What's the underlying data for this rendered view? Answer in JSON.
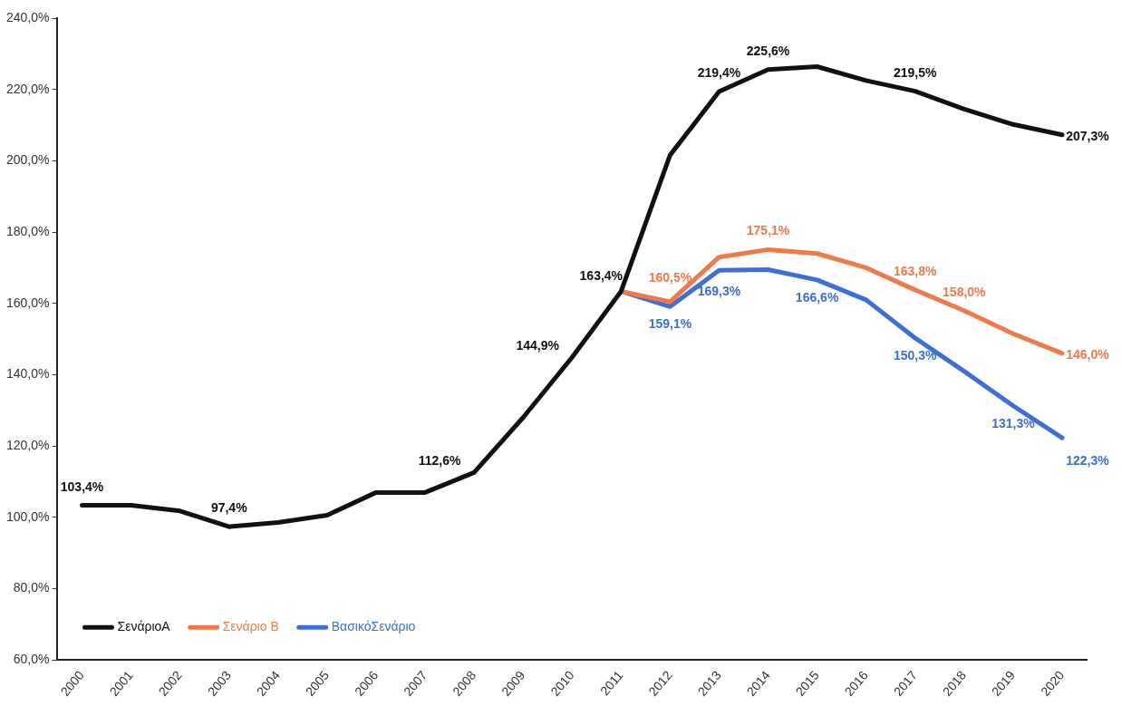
{
  "chart_data": {
    "type": "line",
    "categories": [
      "2000",
      "2001",
      "2002",
      "2003",
      "2004",
      "2005",
      "2006",
      "2007",
      "2008",
      "2009",
      "2010",
      "2011",
      "2012",
      "2013",
      "2014",
      "2015",
      "2016",
      "2017",
      "2018",
      "2019",
      "2020"
    ],
    "series": [
      {
        "name": "ΣενάριοA",
        "color": "#111111",
        "values": [
          103.4,
          103.4,
          101.8,
          97.4,
          98.6,
          100.6,
          107,
          107,
          112.6,
          128,
          144.9,
          163.4,
          201.6,
          219.4,
          225.6,
          226.4,
          222.5,
          219.5,
          214.5,
          210.2,
          207.3
        ],
        "value_labels": [
          "103,4%",
          null,
          null,
          "97,4%",
          null,
          null,
          null,
          null,
          "112,6%",
          null,
          "144,9%",
          "163,4%",
          null,
          "219,4%",
          "225,6%",
          null,
          null,
          "219,5%",
          null,
          null,
          "207,3%"
        ]
      },
      {
        "name": "Σενάριο B",
        "color": "#ee7a4c",
        "values": [
          null,
          null,
          null,
          null,
          null,
          null,
          null,
          null,
          null,
          null,
          null,
          163.4,
          160.5,
          173,
          175.1,
          174,
          170,
          163.8,
          158.0,
          151.5,
          146.0
        ],
        "value_labels": [
          null,
          null,
          null,
          null,
          null,
          null,
          null,
          null,
          null,
          null,
          null,
          null,
          "160,5%",
          null,
          "175,1%",
          null,
          null,
          "163,8%",
          "158,0%",
          null,
          "146,0%"
        ]
      },
      {
        "name": "ΒασικόΣενάριο",
        "color": "#3d6fd6",
        "values": [
          null,
          null,
          null,
          null,
          null,
          null,
          null,
          null,
          null,
          null,
          null,
          163.4,
          159.1,
          169.3,
          169.5,
          166.6,
          161,
          150.3,
          141,
          131.3,
          122.3
        ],
        "value_labels": [
          null,
          null,
          null,
          null,
          null,
          null,
          null,
          null,
          null,
          null,
          null,
          null,
          "159,1%",
          "169,3%",
          null,
          "166,6%",
          null,
          "150,3%",
          null,
          "131,3%",
          "122,3%"
        ]
      }
    ],
    "ylim": [
      60,
      240
    ],
    "yticks": [
      {
        "value": 60,
        "label": "60,0%"
      },
      {
        "value": 80,
        "label": "80,0%"
      },
      {
        "value": 100,
        "label": "100,0%"
      },
      {
        "value": 120,
        "label": "120,0%"
      },
      {
        "value": 140,
        "label": "140,0%"
      },
      {
        "value": 160,
        "label": "160,0%"
      },
      {
        "value": 180,
        "label": "180,0%"
      },
      {
        "value": 200,
        "label": "200,0%"
      },
      {
        "value": 220,
        "label": "220,0%"
      },
      {
        "value": 240,
        "label": "240,0%"
      }
    ],
    "grid": false,
    "legend": "bottom left",
    "marker": "none",
    "line_style": "solid"
  }
}
